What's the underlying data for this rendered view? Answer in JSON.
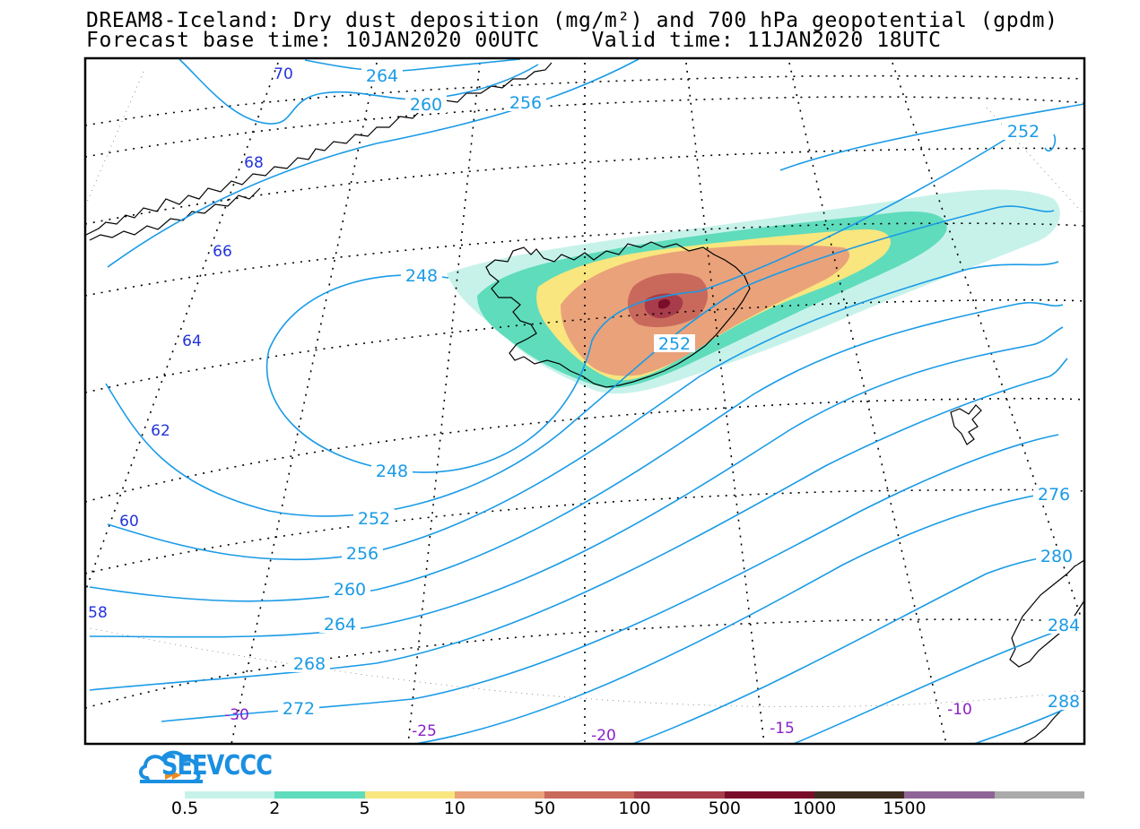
{
  "title": {
    "line1": "DREAM8-Iceland: Dry dust deposition (mg/m²) and 700 hPa geopotential (gpdm)",
    "line2": "Forecast base time: 10JAN2020 00UTC    Valid time: 11JAN2020 18UTC"
  },
  "contour_labels": [
    "264",
    "260",
    "256",
    "252",
    "248",
    "248",
    "252",
    "252",
    "256",
    "260",
    "264",
    "268",
    "272",
    "276",
    "280",
    "284",
    "288"
  ],
  "lat_labels": [
    "70",
    "68",
    "66",
    "64",
    "62",
    "60",
    "58"
  ],
  "lon_labels": [
    "-30",
    "-25",
    "-20",
    "-15",
    "-10"
  ],
  "colors": {
    "contour": "#1a9be6",
    "lat_label": "#2233dd",
    "lon_label": "#8a20c8",
    "coast": "#000000"
  },
  "legend": {
    "colors": [
      "#c7f2ea",
      "#5fdcbc",
      "#f9e67e",
      "#eaa27a",
      "#c9695c",
      "#a83c4a",
      "#7a0d2a",
      "#3d2c1e",
      "#8f6597"
    ],
    "extra_color": "#aaaaaa",
    "labels": [
      "0.5",
      "2",
      "5",
      "10",
      "50",
      "100",
      "500",
      "1000",
      "1500"
    ]
  },
  "logo": {
    "text": "SEEVCCC",
    "icon": "cloud-icon"
  }
}
